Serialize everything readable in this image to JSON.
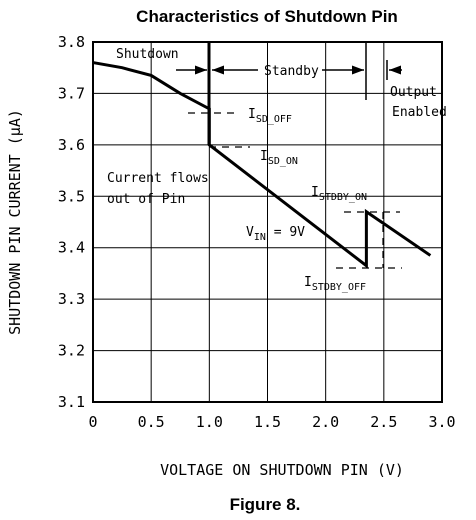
{
  "chart_data": {
    "type": "line",
    "title": "Characteristics of Shutdown Pin",
    "x_label": "VOLTAGE ON SHUTDOWN PIN (V)",
    "y_label": "SHUTDOWN PIN CURRENT (μA)",
    "caption": "Figure 8.",
    "x": [
      0,
      0.25,
      0.5,
      0.75,
      1.0,
      1.0,
      2.35,
      2.35,
      2.9
    ],
    "values": [
      3.76,
      3.75,
      3.735,
      3.7,
      3.67,
      3.6,
      3.365,
      3.47,
      3.385
    ],
    "color": "#000000",
    "xlim": [
      0,
      3
    ],
    "xticks": [
      0,
      0.5,
      {
        "value": 1,
        "label": "1.0"
      },
      1.5,
      {
        "value": 2,
        "label": "2.0"
      },
      2.5,
      {
        "value": 3,
        "label": "3.0"
      }
    ],
    "ylim": [
      3.1,
      3.8
    ],
    "yticks": [
      3.1,
      3.2,
      3.3,
      3.4,
      3.5,
      3.6,
      3.7,
      3.8
    ],
    "grid": true,
    "annotations": {
      "shutdown": "Shutdown",
      "standby": "Standby",
      "output_enabled": [
        "Output",
        "Enabled"
      ],
      "current_flows": [
        "Current flows",
        "out of Pin"
      ],
      "isd_off": {
        "main": "I",
        "sub": "SD_OFF"
      },
      "isd_on": {
        "main": "I",
        "sub": "SD_ON"
      },
      "istdby_on": {
        "main": "I",
        "sub": "STDBY_ON"
      },
      "istdby_off": {
        "main": "I",
        "sub": "STDBY_OFF"
      },
      "vin": {
        "main": "V",
        "sub": "IN",
        "rest": " = 9V"
      }
    }
  }
}
